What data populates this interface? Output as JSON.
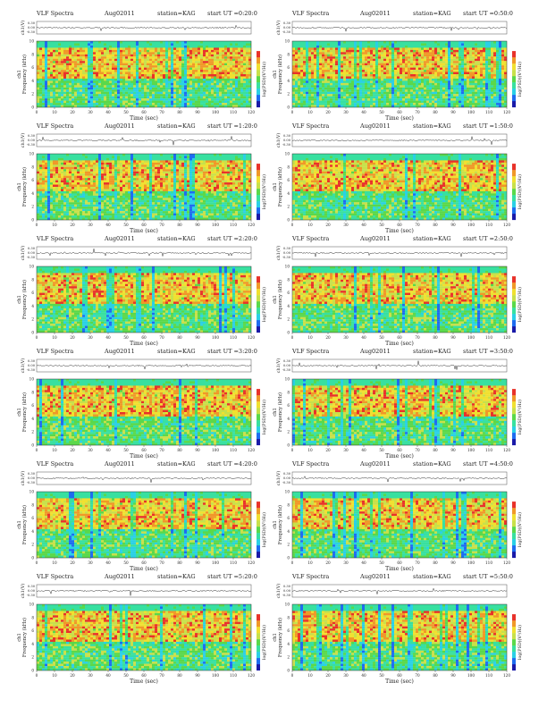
{
  "page": {
    "header_left": "VLF Spectra",
    "date": "Aug02011",
    "station": "station=KAG",
    "start_prefix": "start  UT ="
  },
  "axes": {
    "ch_label": "ch1(V)",
    "ch_ticks": [
      "0.30",
      "0.00",
      "-0.30"
    ],
    "freq_label": "Frequency (kHz)",
    "freq_ticks": [
      "0",
      "2",
      "4",
      "6",
      "8",
      "10"
    ],
    "time_label": "Time (sec)",
    "time_ticks": [
      "0",
      "10",
      "20",
      "30",
      "40",
      "50",
      "60",
      "70",
      "80",
      "90",
      "100",
      "110",
      "120"
    ],
    "cbar_label": "log(PSD)(V²/Hz)"
  },
  "panels": [
    {
      "start": "0:20:0"
    },
    {
      "start": "0:50:0"
    },
    {
      "start": "1:20:0"
    },
    {
      "start": "1:50:0"
    },
    {
      "start": "2:20:0"
    },
    {
      "start": "2:50:0"
    },
    {
      "start": "3:20:0"
    },
    {
      "start": "3:50:0"
    },
    {
      "start": "4:20:0"
    },
    {
      "start": "4:50:0"
    },
    {
      "start": "5:20:0"
    },
    {
      "start": "5:50:0"
    }
  ],
  "chart_data": [
    {
      "type": "heatmap",
      "title": "VLF Spectra  Aug02011  station=KAG  start UT =0:20:0",
      "xlabel": "Time (sec)",
      "ylabel": "Frequency (kHz)",
      "xlim": [
        0,
        120
      ],
      "ylim": [
        0,
        10
      ],
      "colorbar": "log(PSD)(V²/Hz)"
    },
    {
      "type": "heatmap",
      "title": "VLF Spectra  Aug02011  station=KAG  start UT =0:50:0",
      "xlabel": "Time (sec)",
      "ylabel": "Frequency (kHz)",
      "xlim": [
        0,
        120
      ],
      "ylim": [
        0,
        10
      ],
      "colorbar": "log(PSD)(V²/Hz)"
    },
    {
      "type": "heatmap",
      "title": "VLF Spectra  Aug02011  station=KAG  start UT =1:20:0",
      "xlabel": "Time (sec)",
      "ylabel": "Frequency (kHz)",
      "xlim": [
        0,
        120
      ],
      "ylim": [
        0,
        10
      ],
      "colorbar": "log(PSD)(V²/Hz)"
    },
    {
      "type": "heatmap",
      "title": "VLF Spectra  Aug02011  station=KAG  start UT =1:50:0",
      "xlabel": "Time (sec)",
      "ylabel": "Frequency (kHz)",
      "xlim": [
        0,
        120
      ],
      "ylim": [
        0,
        10
      ],
      "colorbar": "log(PSD)(V²/Hz)"
    },
    {
      "type": "heatmap",
      "title": "VLF Spectra  Aug02011  station=KAG  start UT =2:20:0",
      "xlabel": "Time (sec)",
      "ylabel": "Frequency (kHz)",
      "xlim": [
        0,
        120
      ],
      "ylim": [
        0,
        10
      ],
      "colorbar": "log(PSD)(V²/Hz)"
    },
    {
      "type": "heatmap",
      "title": "VLF Spectra  Aug02011  station=KAG  start UT =2:50:0",
      "xlabel": "Time (sec)",
      "ylabel": "Frequency (kHz)",
      "xlim": [
        0,
        120
      ],
      "ylim": [
        0,
        10
      ],
      "colorbar": "log(PSD)(V²/Hz)"
    },
    {
      "type": "heatmap",
      "title": "VLF Spectra  Aug02011  station=KAG  start UT =3:20:0",
      "xlabel": "Time (sec)",
      "ylabel": "Frequency (kHz)",
      "xlim": [
        0,
        120
      ],
      "ylim": [
        0,
        10
      ],
      "colorbar": "log(PSD)(V²/Hz)"
    },
    {
      "type": "heatmap",
      "title": "VLF Spectra  Aug02011  station=KAG  start UT =3:50:0",
      "xlabel": "Time (sec)",
      "ylabel": "Frequency (kHz)",
      "xlim": [
        0,
        120
      ],
      "ylim": [
        0,
        10
      ],
      "colorbar": "log(PSD)(V²/Hz)"
    },
    {
      "type": "heatmap",
      "title": "VLF Spectra  Aug02011  station=KAG  start UT =4:20:0",
      "xlabel": "Time (sec)",
      "ylabel": "Frequency (kHz)",
      "xlim": [
        0,
        120
      ],
      "ylim": [
        0,
        10
      ],
      "colorbar": "log(PSD)(V²/Hz)"
    },
    {
      "type": "heatmap",
      "title": "VLF Spectra  Aug02011  station=KAG  start UT =4:50:0",
      "xlabel": "Time (sec)",
      "ylabel": "Frequency (kHz)",
      "xlim": [
        0,
        120
      ],
      "ylim": [
        0,
        10
      ],
      "colorbar": "log(PSD)(V²/Hz)"
    },
    {
      "type": "heatmap",
      "title": "VLF Spectra  Aug02011  station=KAG  start UT =5:20:0",
      "xlabel": "Time (sec)",
      "ylabel": "Frequency (kHz)",
      "xlim": [
        0,
        120
      ],
      "ylim": [
        0,
        10
      ],
      "colorbar": "log(PSD)(V²/Hz)"
    },
    {
      "type": "heatmap",
      "title": "VLF Spectra  Aug02011  station=KAG  start UT =5:50:0",
      "xlabel": "Time (sec)",
      "ylabel": "Frequency (kHz)",
      "xlim": [
        0,
        120
      ],
      "ylim": [
        0,
        10
      ],
      "colorbar": "log(PSD)(V²/Hz)"
    }
  ],
  "colors": {
    "colorscale": [
      "#1a1aa8",
      "#1e6cf0",
      "#2ad0e6",
      "#38e0a0",
      "#5ad84a",
      "#c8e04a",
      "#f0e030",
      "#f09828",
      "#e8322a"
    ],
    "trace": "#333333"
  }
}
